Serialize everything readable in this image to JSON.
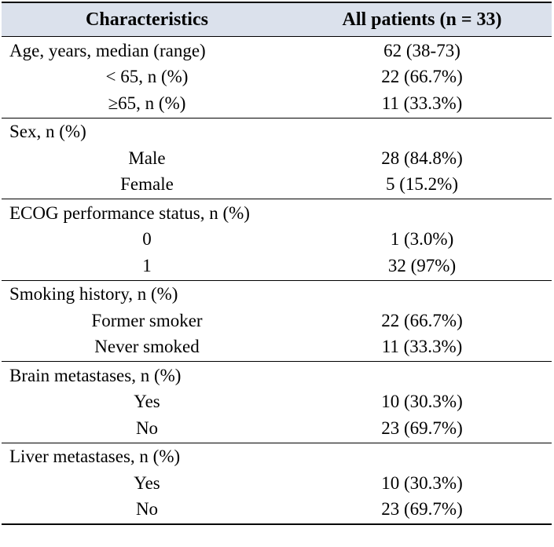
{
  "table": {
    "header": [
      "Characteristics",
      "All patients (n = 33)"
    ],
    "groups": [
      {
        "label": "Age, years, median (range)",
        "value": "62 (38-73)",
        "rows": [
          {
            "label": "< 65, n (%)",
            "value": "22 (66.7%)"
          },
          {
            "label": "≥65, n (%)",
            "value": "11 (33.3%)"
          }
        ]
      },
      {
        "label": "Sex, n (%)",
        "rows": [
          {
            "label": "Male",
            "value": "28 (84.8%)"
          },
          {
            "label": "Female",
            "value": "5 (15.2%)"
          }
        ]
      },
      {
        "label": "ECOG performance status, n (%)",
        "rows": [
          {
            "label": "0",
            "value": "1 (3.0%)"
          },
          {
            "label": "1",
            "value": "32 (97%)"
          }
        ]
      },
      {
        "label": "Smoking history, n (%)",
        "rows": [
          {
            "label": "Former smoker",
            "value": "22 (66.7%)"
          },
          {
            "label": "Never smoked",
            "value": "11 (33.3%)"
          }
        ]
      },
      {
        "label": "Brain metastases, n (%)",
        "rows": [
          {
            "label": "Yes",
            "value": "10 (30.3%)"
          },
          {
            "label": "No",
            "value": "23 (69.7%)"
          }
        ]
      },
      {
        "label": "Liver metastases, n (%)",
        "rows": [
          {
            "label": "Yes",
            "value": "10 (30.3%)"
          },
          {
            "label": "No",
            "value": "23 (69.7%)"
          }
        ]
      }
    ]
  }
}
